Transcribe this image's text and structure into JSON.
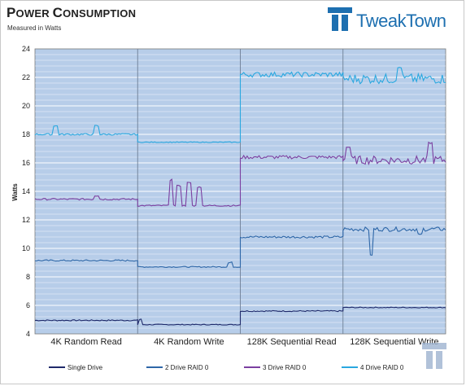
{
  "header": {
    "title_first": "P",
    "title_rest": "OWER ",
    "title_first2": "C",
    "title_rest2": "ONSUMPTION",
    "subtitle": "Measured in Watts",
    "brand": "TweakTown"
  },
  "colors": {
    "plot_bg": "#b7cde9",
    "grid": "#ffffff",
    "single": "#1f2a6b",
    "raid2": "#2e67a8",
    "raid3": "#7b3fa0",
    "raid4": "#2aa8e0"
  },
  "chart_data": {
    "type": "line",
    "title": "Power Consumption",
    "subtitle": "Measured in Watts",
    "ylabel": "Watts",
    "xlabel": "",
    "ylim": [
      4,
      24
    ],
    "yticks": [
      4,
      6,
      8,
      10,
      12,
      14,
      16,
      18,
      20,
      22,
      24
    ],
    "grid": true,
    "legend": "bottom",
    "categories": [
      "4K Random Read",
      "4K Random Write",
      "128K Sequential Read",
      "128K Sequential Write"
    ],
    "series": [
      {
        "name": "Single Drive",
        "color": "#1f2a6b",
        "segments": [
          {
            "base": 4.95,
            "noise": 0.04,
            "spikes": []
          },
          {
            "base": 4.65,
            "noise": 0.03,
            "spikes": [
              [
                0.02,
                5.0
              ]
            ]
          },
          {
            "base": 5.6,
            "noise": 0.04,
            "spikes": []
          },
          {
            "base": 5.85,
            "noise": 0.03,
            "spikes": []
          }
        ]
      },
      {
        "name": "2 Drive RAID 0",
        "color": "#2e67a8",
        "segments": [
          {
            "base": 9.15,
            "noise": 0.05,
            "spikes": []
          },
          {
            "base": 8.7,
            "noise": 0.04,
            "spikes": [
              [
                0.9,
                9.0
              ]
            ]
          },
          {
            "base": 10.8,
            "noise": 0.08,
            "spikes": []
          },
          {
            "base": 11.35,
            "noise": 0.15,
            "spikes": [
              [
                0.28,
                9.5
              ],
              [
                0.75,
                11.0
              ]
            ]
          }
        ]
      },
      {
        "name": "3 Drive RAID 0",
        "color": "#7b3fa0",
        "segments": [
          {
            "base": 13.45,
            "noise": 0.06,
            "spikes": [
              [
                0.6,
                13.7
              ]
            ]
          },
          {
            "base": 13.0,
            "noise": 0.05,
            "spikes": [
              [
                0.33,
                14.8
              ],
              [
                0.4,
                14.4
              ],
              [
                0.5,
                14.6
              ],
              [
                0.6,
                14.3
              ]
            ]
          },
          {
            "base": 16.4,
            "noise": 0.12,
            "spikes": []
          },
          {
            "base": 16.2,
            "noise": 0.3,
            "spikes": [
              [
                0.05,
                17.1
              ],
              [
                0.85,
                17.4
              ]
            ]
          }
        ]
      },
      {
        "name": "4 Drive RAID 0",
        "color": "#2aa8e0",
        "segments": [
          {
            "base": 18.0,
            "noise": 0.06,
            "spikes": [
              [
                0.2,
                18.6
              ],
              [
                0.6,
                18.6
              ]
            ]
          },
          {
            "base": 17.45,
            "noise": 0.03,
            "spikes": []
          },
          {
            "base": 22.2,
            "noise": 0.18,
            "spikes": []
          },
          {
            "base": 21.9,
            "noise": 0.35,
            "spikes": [
              [
                0.55,
                22.7
              ]
            ]
          }
        ]
      }
    ]
  }
}
